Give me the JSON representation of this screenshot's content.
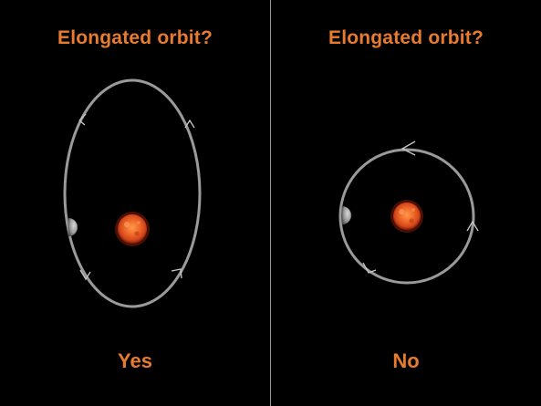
{
  "colors": {
    "background": "#000000",
    "text": "#E87B2E",
    "orbit": "#9A9A9A",
    "divider": "#9A9A9A",
    "sun_core": "#F06A2A",
    "sun_edge": "#C23A12",
    "planet": "#A8A8A8"
  },
  "left_panel": {
    "title": "Elongated orbit?",
    "answer": "Yes",
    "icons": [
      "sun-icon",
      "planet-icon",
      "direction-arrow-icon"
    ]
  },
  "right_panel": {
    "title": "Elongated orbit?",
    "answer": "No",
    "icons": [
      "sun-icon",
      "planet-icon",
      "direction-arrow-icon"
    ]
  }
}
